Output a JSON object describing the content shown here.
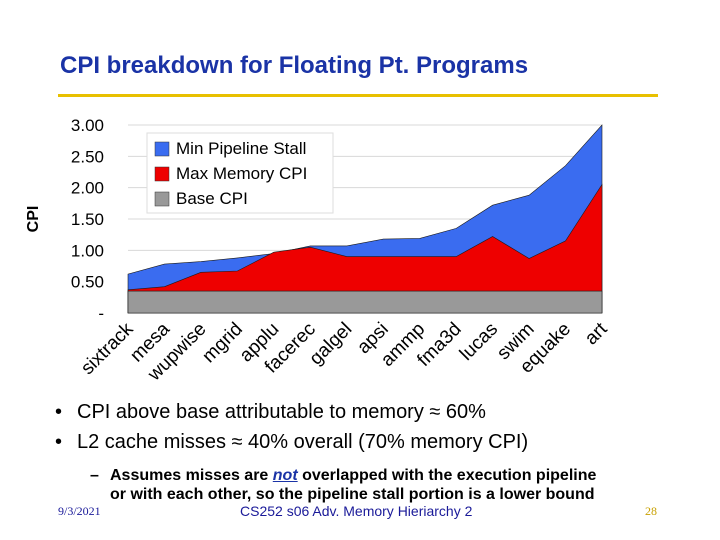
{
  "slide": {
    "title": "CPI breakdown for Floating Pt. Programs",
    "accent_color": "#e8c000",
    "title_color": "#1a33a6",
    "bullets": [
      "CPI above base attributable to memory ≈ 60%",
      "L2 cache misses ≈ 40% overall (70% memory CPI)"
    ],
    "sub_bullet": {
      "dash": "–",
      "pre": "Assumes misses are ",
      "emph": "not",
      "post": " overlapped with the execution pipeline",
      "line2": "or with each other, so the pipeline stall portion is a lower bound"
    },
    "footer": {
      "date": "9/3/2021",
      "center": "CS252 s06 Adv. Memory Hieriarchy 2",
      "page": "28"
    }
  },
  "chart_data": {
    "type": "area",
    "stacked": false,
    "title": "",
    "xlabel": "",
    "ylabel": "CPI",
    "ylim": [
      0,
      3.0
    ],
    "y_ticks": [
      "-",
      "0.50",
      "1.00",
      "1.50",
      "2.00",
      "2.50",
      "3.00"
    ],
    "categories": [
      "sixtrack",
      "mesa",
      "wupwise",
      "mgrid",
      "applu",
      "facerec",
      "galgel",
      "apsi",
      "ammp",
      "fma3d",
      "lucas",
      "swim",
      "equake",
      "art"
    ],
    "legend": [
      "Min Pipeline Stall",
      "Max Memory CPI",
      "Base CPI"
    ],
    "legend_position": "top-left",
    "series": [
      {
        "name": "Min Pipeline Stall",
        "color": "#3a6cf0",
        "values": [
          0.62,
          0.78,
          0.82,
          0.88,
          0.95,
          1.07,
          1.07,
          1.18,
          1.19,
          1.35,
          1.72,
          1.88,
          2.35,
          3.0
        ]
      },
      {
        "name": "Max Memory CPI",
        "color": "#ee0000",
        "values": [
          0.37,
          0.42,
          0.65,
          0.67,
          0.97,
          1.05,
          0.9,
          0.9,
          0.9,
          0.9,
          1.22,
          0.87,
          1.15,
          2.05
        ]
      },
      {
        "name": "Base CPI",
        "color": "#999999",
        "values": [
          0.35,
          0.35,
          0.35,
          0.35,
          0.35,
          0.35,
          0.35,
          0.35,
          0.35,
          0.35,
          0.35,
          0.35,
          0.35,
          0.35
        ]
      }
    ]
  }
}
